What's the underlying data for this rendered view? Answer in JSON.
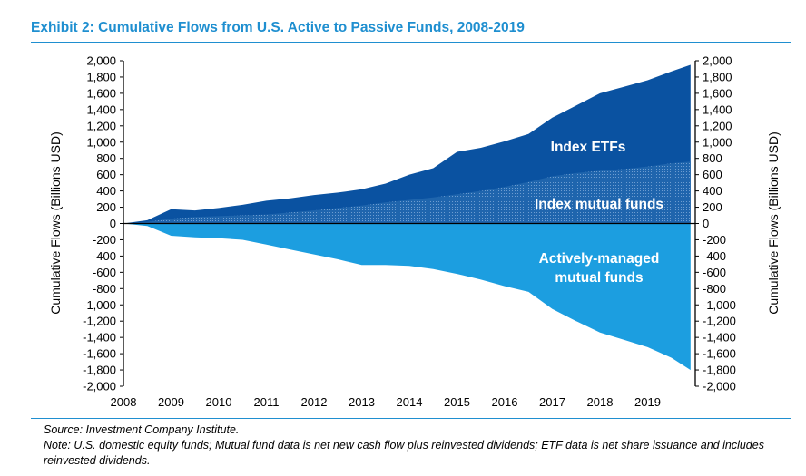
{
  "title": "Exhibit 2: Cumulative Flows from U.S. Active to Passive Funds, 2008-2019",
  "source": "Source: Investment Company Institute.",
  "note": "Note: U.S. domestic equity funds; Mutual fund data is net new cash flow plus reinvested dividends; ETF data is net share issuance and includes reinvested dividends.",
  "colors": {
    "etf": "#0a52a1",
    "index_mf": "#2e6fb3",
    "active": "#1c9ee0",
    "title": "#1f8fd0"
  },
  "chart_data": {
    "type": "area",
    "ylabel": "Cumulative Flows (Billions USD)",
    "ylabel_right": "Cumulative Flows (Billions USD)",
    "ylim": [
      -2000,
      2000
    ],
    "ytick_step": 200,
    "yticks": [
      "2,000",
      "1,800",
      "1,600",
      "1,400",
      "1,200",
      "1,000",
      "800",
      "600",
      "400",
      "200",
      "0",
      "-200",
      "-400",
      "-600",
      "-800",
      "-1,000",
      "-1,200",
      "-1,400",
      "-1,600",
      "-1,800",
      "-2,000"
    ],
    "xlim": [
      2008,
      2019.9
    ],
    "xticks": [
      "2008",
      "2009",
      "2010",
      "2011",
      "2012",
      "2013",
      "2014",
      "2015",
      "2016",
      "2017",
      "2018",
      "2019"
    ],
    "x": [
      2008,
      2008.5,
      2009,
      2009.5,
      2010,
      2010.5,
      2011,
      2011.5,
      2012,
      2012.5,
      2013,
      2013.5,
      2014,
      2014.5,
      2015,
      2015.5,
      2016,
      2016.5,
      2017,
      2017.5,
      2018,
      2018.5,
      2019,
      2019.5,
      2019.9
    ],
    "series": [
      {
        "name": "Index ETFs",
        "values": [
          0,
          40,
          175,
          160,
          190,
          230,
          280,
          310,
          350,
          380,
          420,
          490,
          600,
          680,
          880,
          930,
          1010,
          1100,
          1300,
          1450,
          1600,
          1680,
          1760,
          1870,
          1950
        ]
      },
      {
        "name": "Index mutual funds",
        "values": [
          0,
          20,
          60,
          80,
          90,
          100,
          110,
          135,
          160,
          190,
          220,
          260,
          290,
          320,
          360,
          400,
          450,
          510,
          580,
          620,
          650,
          670,
          700,
          740,
          760
        ]
      },
      {
        "name": "Actively-managed mutual funds",
        "values": [
          0,
          -30,
          -150,
          -170,
          -180,
          -200,
          -260,
          -320,
          -380,
          -440,
          -510,
          -510,
          -520,
          -560,
          -620,
          -690,
          -770,
          -840,
          -1050,
          -1200,
          -1340,
          -1430,
          -1520,
          -1650,
          -1800
        ]
      }
    ]
  }
}
